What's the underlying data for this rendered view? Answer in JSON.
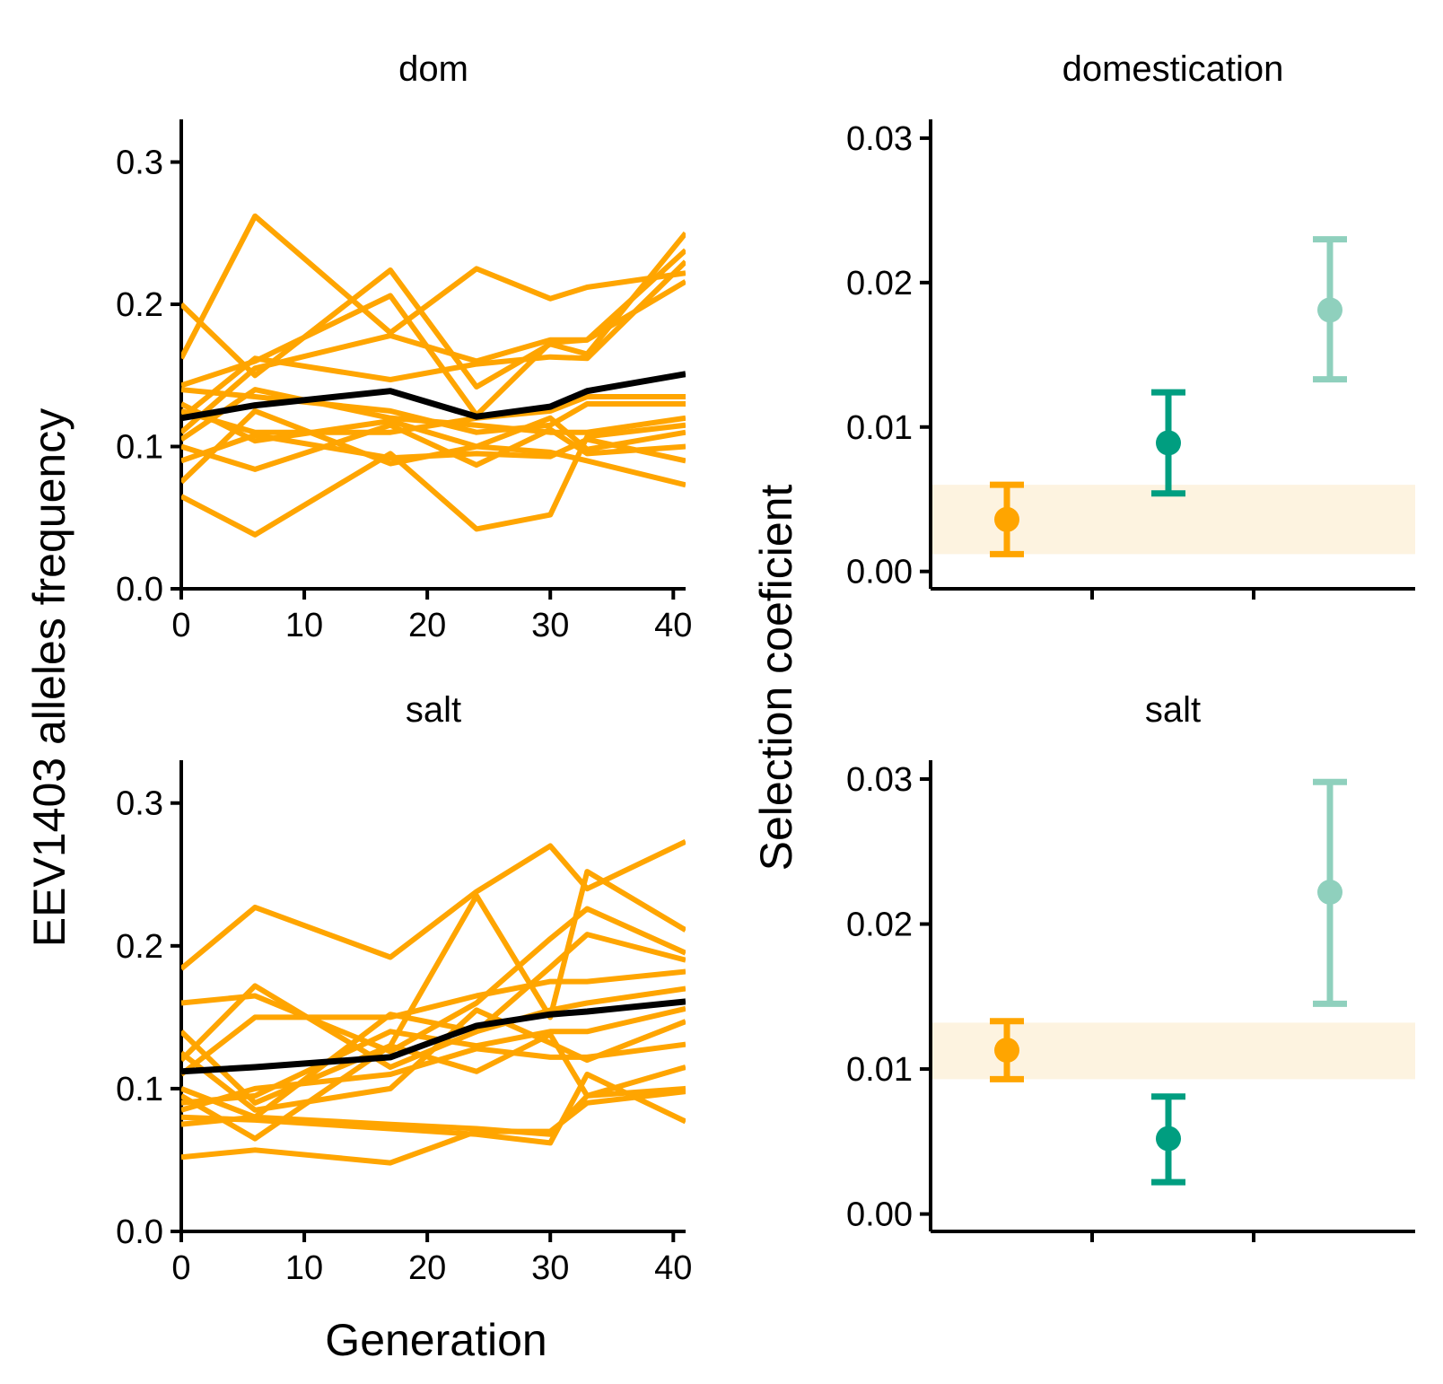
{
  "figure": {
    "ylabel_left": "EEV1403 alleles frequency",
    "xlabel_left": "Generation",
    "ylabel_right": "Selection coeficient"
  },
  "colors": {
    "replicate_line": "#FFA500",
    "mean_line": "#000000",
    "point_1": "#FFA500",
    "point_2": "#009E80",
    "point_3": "#8FD0BD",
    "band": "#FDF3E0"
  },
  "chart_data": [
    {
      "type": "line",
      "title": "dom",
      "xlabel": "Generation",
      "ylabel": "EEV1403 alleles frequency",
      "xlim": [
        0,
        41
      ],
      "ylim": [
        0,
        0.33
      ],
      "x_ticks": [
        "0",
        "10",
        "20",
        "30",
        "40"
      ],
      "y_ticks": [
        "0.0",
        "0.1",
        "0.2",
        "0.3"
      ],
      "x": [
        0,
        6,
        17,
        24,
        30,
        33,
        41
      ],
      "series": [
        {
          "values": [
            0.162,
            0.262,
            0.18,
            0.225,
            0.204,
            0.212,
            0.222
          ]
        },
        {
          "values": [
            0.2,
            0.15,
            0.224,
            0.142,
            0.172,
            0.165,
            0.25
          ]
        },
        {
          "values": [
            0.143,
            0.16,
            0.206,
            0.122,
            0.173,
            0.175,
            0.238
          ]
        },
        {
          "values": [
            0.11,
            0.155,
            0.178,
            0.16,
            0.175,
            0.175,
            0.216
          ]
        },
        {
          "values": [
            0.12,
            0.162,
            0.147,
            0.158,
            0.163,
            0.162,
            0.23
          ]
        },
        {
          "values": [
            0.14,
            0.135,
            0.125,
            0.11,
            0.115,
            0.13,
            0.13
          ]
        },
        {
          "values": [
            0.125,
            0.11,
            0.11,
            0.12,
            0.125,
            0.135,
            0.135
          ]
        },
        {
          "values": [
            0.105,
            0.14,
            0.12,
            0.115,
            0.11,
            0.11,
            0.12
          ]
        },
        {
          "values": [
            0.13,
            0.104,
            0.118,
            0.1,
            0.12,
            0.098,
            0.11
          ]
        },
        {
          "values": [
            0.1,
            0.084,
            0.115,
            0.087,
            0.112,
            0.095,
            0.1
          ]
        },
        {
          "values": [
            0.09,
            0.108,
            0.092,
            0.095,
            0.093,
            0.105,
            0.09
          ]
        },
        {
          "values": [
            0.075,
            0.125,
            0.088,
            0.1,
            0.096,
            0.09,
            0.073
          ]
        },
        {
          "values": [
            0.065,
            0.038,
            0.095,
            0.042,
            0.052,
            0.107,
            0.115
          ]
        },
        {
          "values": [
            0.12,
            0.129,
            0.139,
            0.121,
            0.128,
            0.139,
            0.151
          ],
          "mean": true
        }
      ]
    },
    {
      "type": "line",
      "title": "salt",
      "xlabel": "Generation",
      "ylabel": "EEV1403 alleles frequency",
      "xlim": [
        0,
        41
      ],
      "ylim": [
        0,
        0.33
      ],
      "x_ticks": [
        "0",
        "10",
        "20",
        "30",
        "40"
      ],
      "y_ticks": [
        "0.0",
        "0.1",
        "0.2",
        "0.3"
      ],
      "x": [
        0,
        6,
        17,
        24,
        30,
        33,
        41
      ],
      "series": [
        {
          "values": [
            0.184,
            0.227,
            0.192,
            0.238,
            0.27,
            0.24,
            0.273
          ]
        },
        {
          "values": [
            0.14,
            0.09,
            0.13,
            0.235,
            0.15,
            0.252,
            0.211
          ]
        },
        {
          "values": [
            0.16,
            0.165,
            0.126,
            0.16,
            0.205,
            0.226,
            0.195
          ]
        },
        {
          "values": [
            0.12,
            0.172,
            0.115,
            0.14,
            0.185,
            0.208,
            0.19
          ]
        },
        {
          "values": [
            0.11,
            0.15,
            0.15,
            0.165,
            0.175,
            0.175,
            0.182
          ]
        },
        {
          "values": [
            0.1,
            0.08,
            0.152,
            0.14,
            0.155,
            0.16,
            0.17
          ]
        },
        {
          "values": [
            0.09,
            0.095,
            0.14,
            0.13,
            0.14,
            0.14,
            0.156
          ]
        },
        {
          "values": [
            0.125,
            0.085,
            0.1,
            0.155,
            0.132,
            0.12,
            0.147
          ]
        },
        {
          "values": [
            0.085,
            0.1,
            0.11,
            0.128,
            0.122,
            0.122,
            0.131
          ]
        },
        {
          "values": [
            0.095,
            0.065,
            0.13,
            0.112,
            0.138,
            0.095,
            0.115
          ]
        },
        {
          "values": [
            0.075,
            0.08,
            0.075,
            0.072,
            0.068,
            0.095,
            0.1
          ]
        },
        {
          "values": [
            0.08,
            0.078,
            0.072,
            0.068,
            0.062,
            0.11,
            0.077
          ]
        },
        {
          "values": [
            0.052,
            0.057,
            0.048,
            0.07,
            0.07,
            0.09,
            0.098
          ]
        },
        {
          "values": [
            0.112,
            0.115,
            0.122,
            0.144,
            0.152,
            0.154,
            0.161
          ],
          "mean": true
        }
      ]
    },
    {
      "type": "scatter",
      "title": "domestication",
      "ylabel": "Selection coeficient",
      "ylim": [
        -0.0012,
        0.0313
      ],
      "y_ticks": [
        "0.00",
        "0.01",
        "0.02",
        "0.03"
      ],
      "band": [
        0.0012,
        0.006
      ],
      "points": [
        {
          "y": 0.0036,
          "lo": 0.0012,
          "hi": 0.006,
          "color": "#FFA500"
        },
        {
          "y": 0.0089,
          "lo": 0.0054,
          "hi": 0.0124,
          "color": "#009E80"
        },
        {
          "y": 0.0181,
          "lo": 0.0133,
          "hi": 0.023,
          "color": "#8FD0BD"
        }
      ]
    },
    {
      "type": "scatter",
      "title": "salt",
      "ylabel": "Selection coeficient",
      "ylim": [
        -0.0012,
        0.0313
      ],
      "y_ticks": [
        "0.00",
        "0.01",
        "0.02",
        "0.03"
      ],
      "band": [
        0.0093,
        0.0132
      ],
      "points": [
        {
          "y": 0.0113,
          "lo": 0.0093,
          "hi": 0.0133,
          "color": "#FFA500"
        },
        {
          "y": 0.0052,
          "lo": 0.0022,
          "hi": 0.0081,
          "color": "#009E80"
        },
        {
          "y": 0.0222,
          "lo": 0.0145,
          "hi": 0.0298,
          "color": "#8FD0BD"
        }
      ]
    }
  ]
}
